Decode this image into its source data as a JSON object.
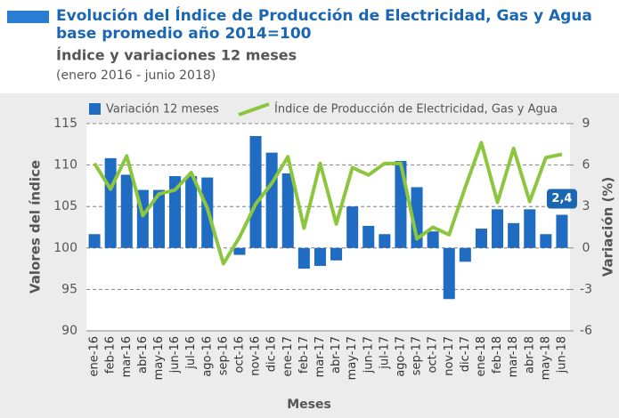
{
  "chart_data": {
    "type": "bar",
    "title": "Evolución del Índice de Producción de Electricidad, Gas y Agua",
    "title_line2": "base promedio año 2014=100",
    "subtitle": "Índice y variaciones 12 meses",
    "period": "(enero 2016 - junio 2018)",
    "x_label": "Meses",
    "y_label": "Valores del índice",
    "y2_label": "Variación (%)",
    "categories": [
      "ene-16",
      "feb-16",
      "mar-16",
      "abr-16",
      "may-16",
      "jun-16",
      "jul-16",
      "ago-16",
      "sep-16",
      "oct-16",
      "nov-16",
      "dic-16",
      "ene-17",
      "feb-17",
      "mar-17",
      "abr-17",
      "may-17",
      "jun-17",
      "jul-17",
      "ago-17",
      "sep-17",
      "oct-17",
      "nov-17",
      "dic-17",
      "ene-18",
      "feb-18",
      "mar-18",
      "abr-18",
      "may-18",
      "jun-18"
    ],
    "series": [
      {
        "name": "Variación 12 meses",
        "type": "bar",
        "axis": "y2",
        "color": "#1f6cc2",
        "values": [
          1.0,
          6.5,
          5.3,
          4.2,
          4.2,
          5.2,
          5.2,
          5.1,
          0,
          -0.5,
          8.1,
          6.9,
          5.4,
          -1.5,
          -1.3,
          -0.9,
          3.0,
          1.6,
          1.0,
          6.3,
          4.4,
          1.2,
          -3.7,
          -1.0,
          1.4,
          2.8,
          1.8,
          2.8,
          1.0,
          2.4
        ],
        "value_labels": [
          null,
          null,
          null,
          null,
          null,
          null,
          null,
          null,
          null,
          null,
          null,
          null,
          null,
          null,
          null,
          null,
          null,
          null,
          null,
          null,
          null,
          null,
          null,
          null,
          null,
          null,
          null,
          null,
          null,
          "2,4"
        ]
      },
      {
        "name": "Índice de Producción de Electricidad, Gas y Agua",
        "type": "line",
        "axis": "y",
        "color": "#8cc63f",
        "values": [
          110.2,
          107.1,
          111.1,
          103.9,
          106.5,
          107.0,
          109.1,
          104.8,
          98.1,
          101.3,
          105.3,
          107.8,
          111.0,
          102.4,
          110.2,
          102.9,
          109.7,
          108.8,
          110.2,
          110.2,
          101.1,
          102.5,
          101.6,
          107.3,
          112.7,
          105.5,
          112.0,
          105.6,
          110.9,
          111.3
        ]
      }
    ],
    "ylim": [
      90,
      115
    ],
    "yticks": [
      90,
      95,
      100,
      105,
      110,
      115
    ],
    "y2lim": [
      -6,
      9
    ],
    "y2ticks": [
      -6,
      -3,
      0,
      3,
      6,
      9
    ],
    "grid": true
  }
}
